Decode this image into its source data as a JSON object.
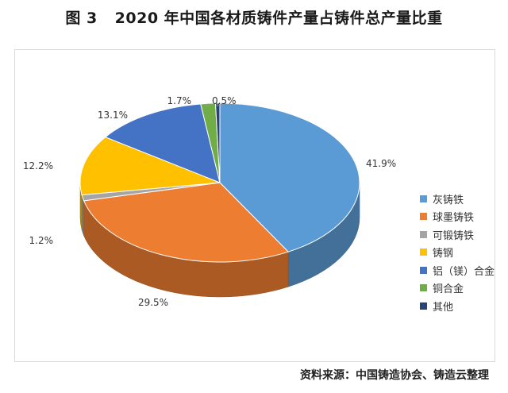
{
  "title": {
    "figure": "图 3",
    "text": "2020 年中国各材质铸件产量占铸件总产量比重"
  },
  "source": {
    "label": "资料来源：",
    "text": "中国铸造协会、铸造云整理"
  },
  "chart_data": {
    "type": "pie",
    "title": "2020 年中国各材质铸件产量占铸件总产量比重",
    "unit": "%",
    "legend_position": "right",
    "slices": [
      {
        "name": "灰铸铁",
        "value": 41.9,
        "label": "41.9%",
        "color": "#5b9bd5"
      },
      {
        "name": "球墨铸铁",
        "value": 29.5,
        "label": "29.5%",
        "color": "#ed7d31"
      },
      {
        "name": "可锻铸铁",
        "value": 1.2,
        "label": "1.2%",
        "color": "#a5a5a5"
      },
      {
        "name": "铸钢",
        "value": 12.2,
        "label": "12.2%",
        "color": "#ffc000"
      },
      {
        "name": "铝（镁）合金",
        "value": 13.1,
        "label": "13.1%",
        "color": "#4472c4"
      },
      {
        "name": "铜合金",
        "value": 1.7,
        "label": "1.7%",
        "color": "#70ad47"
      },
      {
        "name": "其他",
        "value": 0.5,
        "label": "0.5%",
        "color": "#264478"
      }
    ]
  }
}
